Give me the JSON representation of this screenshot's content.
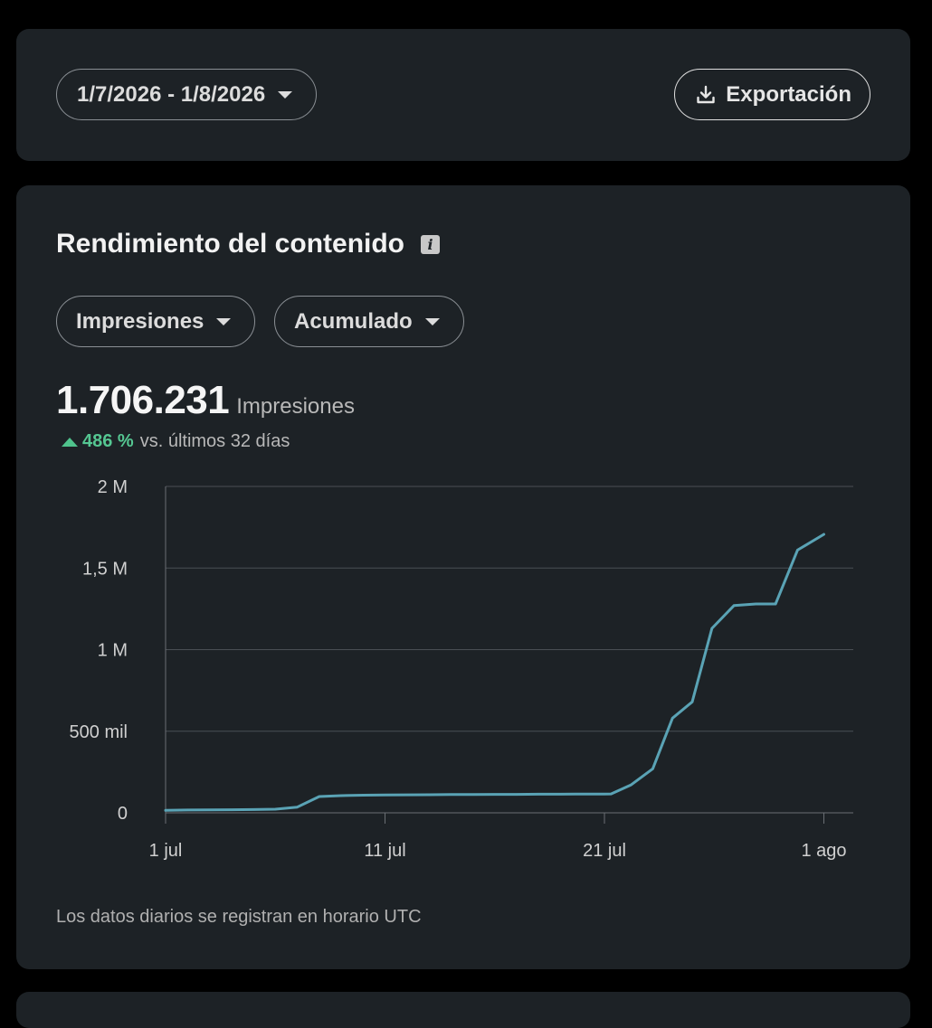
{
  "toolbar": {
    "date_range": "1/7/2026 - 1/8/2026",
    "export_label": "Exportación"
  },
  "section": {
    "title": "Rendimiento del contenido",
    "info_icon": "info-icon"
  },
  "filters": {
    "metric": "Impresiones",
    "mode": "Acumulado"
  },
  "summary": {
    "total": "1.706.231",
    "unit": "Impresiones",
    "change_pct": "486 %",
    "change_text": "vs. últimos 32 días",
    "change_color": "#55c792"
  },
  "footnote": "Los datos diarios se registran en horario UTC",
  "colors": {
    "line": "#5aa3b5",
    "card": "#1d2226",
    "grid": "#4a4f54"
  },
  "chart_data": {
    "type": "line",
    "title": "",
    "xlabel": "",
    "ylabel": "",
    "ylim": [
      0,
      2000000
    ],
    "yticks": [
      {
        "value": 0,
        "label": "0"
      },
      {
        "value": 500000,
        "label": "500 mil"
      },
      {
        "value": 1000000,
        "label": "1 M"
      },
      {
        "value": 1500000,
        "label": "1,5 M"
      },
      {
        "value": 2000000,
        "label": "2 M"
      }
    ],
    "xticks": [
      {
        "day": 1,
        "label": "1 jul"
      },
      {
        "day": 11,
        "label": "11 jul"
      },
      {
        "day": 21,
        "label": "21 jul"
      },
      {
        "day": 31,
        "label": "1 ago"
      }
    ],
    "xlim": [
      1,
      32.5
    ],
    "grid": true,
    "series": [
      {
        "points": [
          {
            "day": 1,
            "value": 15000
          },
          {
            "day": 2,
            "value": 17000
          },
          {
            "day": 3,
            "value": 18000
          },
          {
            "day": 4,
            "value": 19000
          },
          {
            "day": 5,
            "value": 20000
          },
          {
            "day": 6,
            "value": 22000
          },
          {
            "day": 7,
            "value": 35000
          },
          {
            "day": 8,
            "value": 100000
          },
          {
            "day": 9,
            "value": 105000
          },
          {
            "day": 10,
            "value": 108000
          },
          {
            "day": 11,
            "value": 109000
          },
          {
            "day": 12,
            "value": 110000
          },
          {
            "day": 13,
            "value": 111000
          },
          {
            "day": 14,
            "value": 112000
          },
          {
            "day": 15,
            "value": 112000
          },
          {
            "day": 16,
            "value": 113000
          },
          {
            "day": 17,
            "value": 113000
          },
          {
            "day": 18,
            "value": 114000
          },
          {
            "day": 19,
            "value": 114000
          },
          {
            "day": 20,
            "value": 115000
          },
          {
            "day": 21,
            "value": 115000
          },
          {
            "day": 21.3,
            "value": 116000
          },
          {
            "day": 22.2,
            "value": 170000
          },
          {
            "day": 23.2,
            "value": 270000
          },
          {
            "day": 24.1,
            "value": 580000
          },
          {
            "day": 25,
            "value": 680000
          },
          {
            "day": 25.9,
            "value": 1130000
          },
          {
            "day": 26.9,
            "value": 1270000
          },
          {
            "day": 27.9,
            "value": 1280000
          },
          {
            "day": 28.8,
            "value": 1280000
          },
          {
            "day": 29.8,
            "value": 1610000
          },
          {
            "day": 31,
            "value": 1706231
          }
        ]
      }
    ]
  }
}
